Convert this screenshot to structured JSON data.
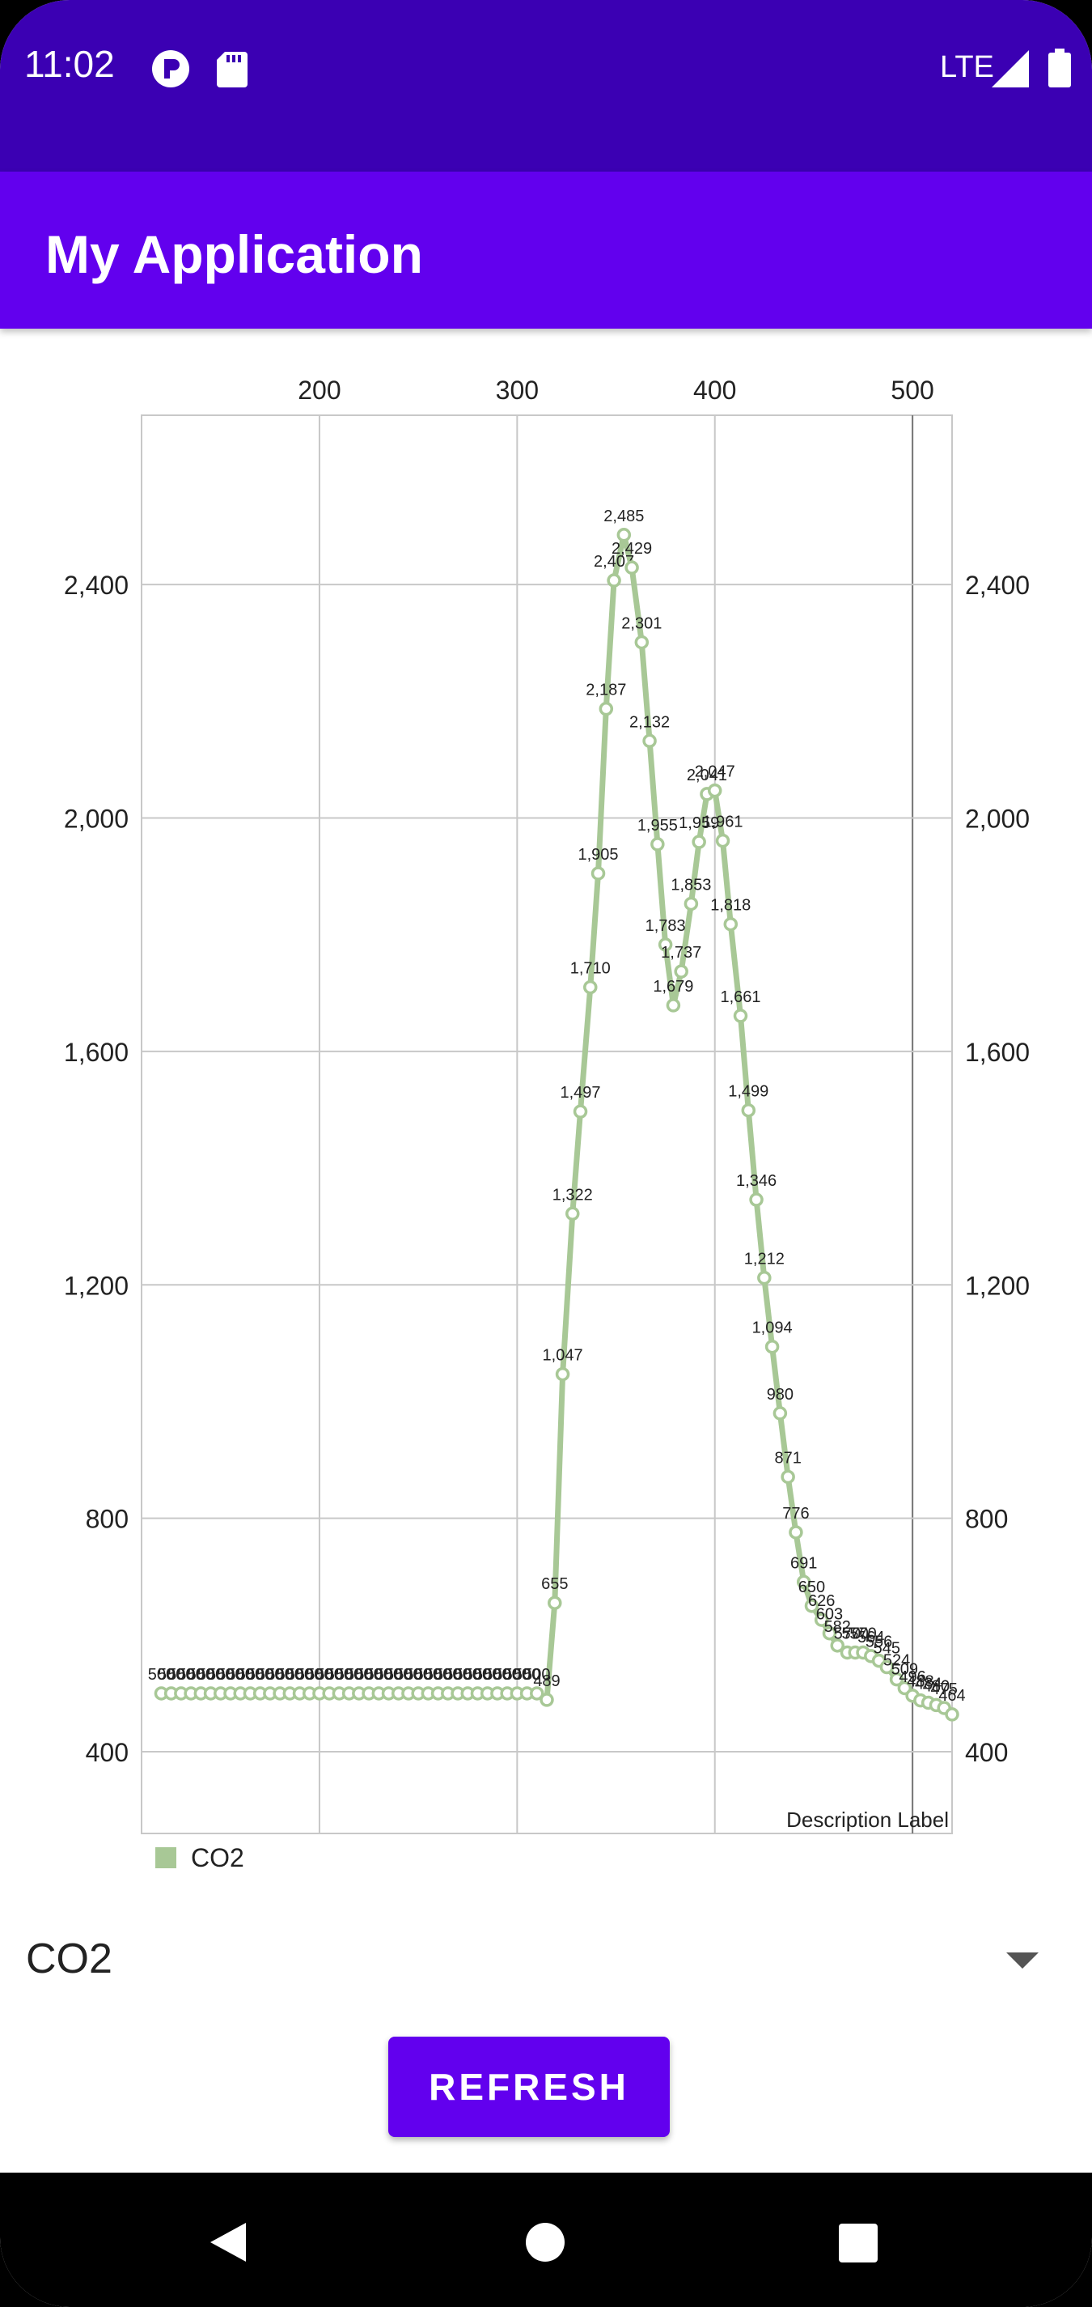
{
  "status_bar": {
    "time": "11:02",
    "network": "LTE",
    "icons": [
      "app-notification-icon",
      "sd-card-icon",
      "signal-icon",
      "battery-icon"
    ]
  },
  "app_bar": {
    "title": "My Application"
  },
  "chart_data": {
    "type": "line",
    "x": [
      120,
      125,
      130,
      135,
      140,
      145,
      150,
      155,
      160,
      165,
      170,
      175,
      180,
      185,
      190,
      195,
      200,
      205,
      210,
      215,
      220,
      225,
      230,
      235,
      240,
      245,
      250,
      255,
      260,
      265,
      270,
      275,
      280,
      285,
      290,
      295,
      300,
      305,
      310,
      315,
      319,
      323,
      328,
      332,
      337,
      341,
      345,
      349,
      354,
      358,
      363,
      367,
      371,
      375,
      379,
      383,
      388,
      392,
      396,
      400,
      404,
      408,
      413,
      417,
      421,
      425,
      429,
      433,
      437,
      441,
      445,
      449,
      454,
      458,
      462,
      467,
      471,
      475,
      479,
      483,
      487,
      492,
      496,
      500,
      504,
      508,
      512,
      516,
      520
    ],
    "y": [
      500,
      500,
      500,
      500,
      500,
      500,
      500,
      500,
      500,
      500,
      500,
      500,
      500,
      500,
      500,
      500,
      500,
      500,
      500,
      500,
      500,
      500,
      500,
      500,
      500,
      500,
      500,
      500,
      500,
      500,
      500,
      500,
      500,
      500,
      500,
      500,
      500,
      500,
      500,
      489,
      655,
      1047,
      1322,
      1497,
      1710,
      1905,
      2187,
      2407,
      2485,
      2429,
      2301,
      2132,
      1955,
      1783,
      1679,
      1737,
      1853,
      1959,
      2041,
      2047,
      1961,
      1818,
      1661,
      1499,
      1346,
      1212,
      1094,
      980,
      871,
      776,
      691,
      650,
      626,
      603,
      582,
      570,
      570,
      570,
      564,
      556,
      545,
      524,
      509,
      496,
      488,
      484,
      480,
      475,
      464
    ],
    "point_labels": [
      "500",
      "500",
      "500",
      "500",
      "500",
      "500",
      "500",
      "500",
      "500",
      "500",
      "500",
      "500",
      "500",
      "500",
      "500",
      "500",
      "500",
      "500",
      "500",
      "500",
      "500",
      "500",
      "500",
      "500",
      "500",
      "500",
      "500",
      "500",
      "500",
      "500",
      "500",
      "500",
      "500",
      "500",
      "500",
      "500",
      "500",
      "500",
      "500",
      "489",
      "655",
      "1,047",
      "1,322",
      "1,497",
      "1,710",
      "1,905",
      "2,187",
      "2,407",
      "2,485",
      "2,429",
      "2,301",
      "2,132",
      "1,955",
      "1,783",
      "1,679",
      "1,737",
      "1,853",
      "1,959",
      "2,041",
      "2,047",
      "1,961",
      "1,818",
      "1,661",
      "1,499",
      "1,346",
      "1,212",
      "1,094",
      "980",
      "871",
      "776",
      "691",
      "650",
      "626",
      "603",
      "582",
      "570",
      "570",
      "570",
      "564",
      "556",
      "545",
      "524",
      "509",
      "496",
      "488",
      "484",
      "480",
      "475",
      "464"
    ],
    "x_ticks": [
      "200",
      "300",
      "400",
      "500"
    ],
    "x_tick_values": [
      200,
      300,
      400,
      500
    ],
    "y_ticks": [
      "400",
      "800",
      "1,200",
      "1,600",
      "2,000",
      "2,400"
    ],
    "y_tick_values": [
      400,
      800,
      1200,
      1600,
      2000,
      2400
    ],
    "xlim": [
      110,
      520
    ],
    "ylim": [
      260,
      2690
    ],
    "limit_line_x": 500,
    "grid": true,
    "legend": [
      "CO2"
    ],
    "legend_position": "bottom-left",
    "description": "Description Label",
    "series_color": "#a8c896"
  },
  "spinner": {
    "value": "CO2"
  },
  "refresh_button": {
    "label": "REFRESH"
  },
  "nav_bar": {
    "icons": [
      "back-icon",
      "home-icon",
      "recents-icon"
    ]
  },
  "colors": {
    "status_bar": "#3b00b3",
    "app_bar": "#6200ee",
    "button": "#6200ee"
  }
}
